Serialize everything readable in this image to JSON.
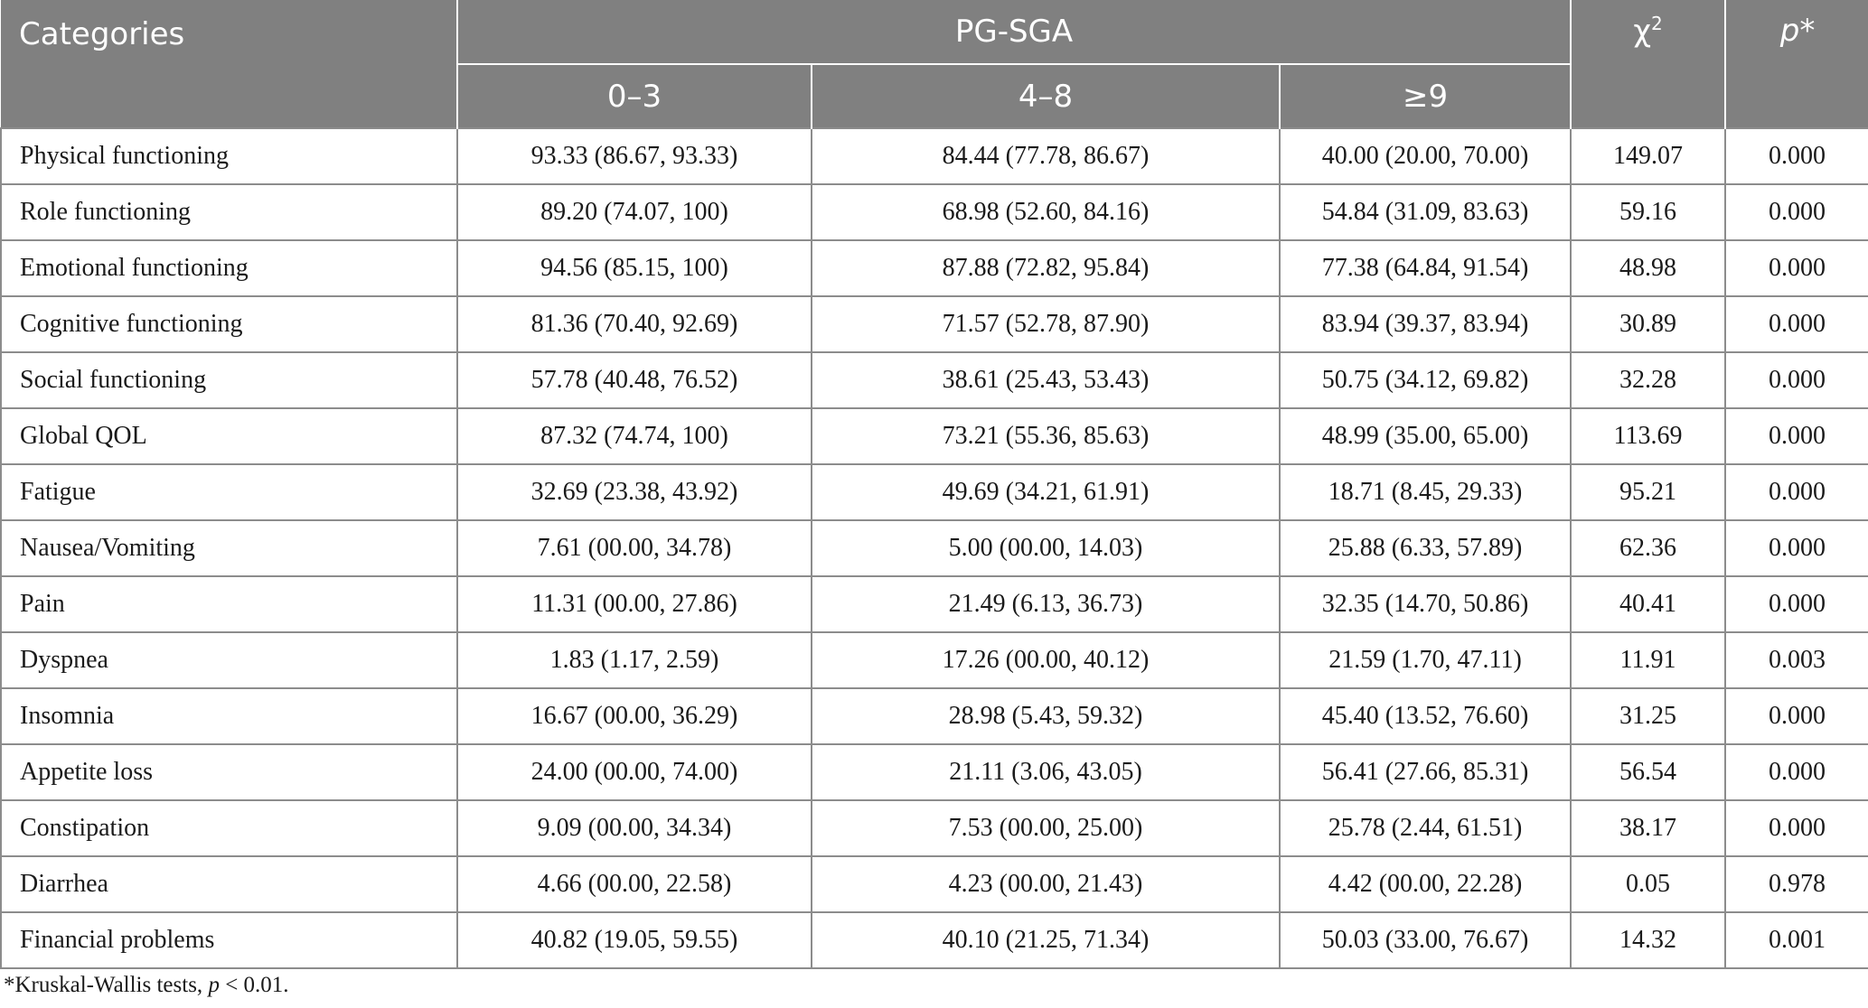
{
  "header": {
    "categories": "Categories",
    "group": "PG-SGA",
    "chi": "χ",
    "chi_sup": "2",
    "p": "p",
    "p_star": "*",
    "sub": [
      "0–3",
      "4–8",
      "≥9"
    ]
  },
  "rows": [
    {
      "cat": "Physical functioning",
      "a": "93.33 (86.67, 93.33)",
      "b": "84.44 (77.78, 86.67)",
      "c": "40.00 (20.00, 70.00)",
      "chi": "149.07",
      "p": "0.000"
    },
    {
      "cat": "Role functioning",
      "a": "89.20 (74.07, 100)",
      "b": "68.98 (52.60, 84.16)",
      "c": "54.84 (31.09, 83.63)",
      "chi": "59.16",
      "p": "0.000"
    },
    {
      "cat": "Emotional functioning",
      "a": "94.56 (85.15, 100)",
      "b": "87.88 (72.82, 95.84)",
      "c": "77.38 (64.84, 91.54)",
      "chi": "48.98",
      "p": "0.000"
    },
    {
      "cat": "Cognitive functioning",
      "a": "81.36 (70.40, 92.69)",
      "b": "71.57 (52.78, 87.90)",
      "c": "83.94 (39.37, 83.94)",
      "chi": "30.89",
      "p": "0.000"
    },
    {
      "cat": "Social functioning",
      "a": "57.78 (40.48, 76.52)",
      "b": "38.61 (25.43, 53.43)",
      "c": "50.75 (34.12, 69.82)",
      "chi": "32.28",
      "p": "0.000"
    },
    {
      "cat": "Global QOL",
      "a": "87.32 (74.74, 100)",
      "b": "73.21 (55.36, 85.63)",
      "c": "48.99 (35.00, 65.00)",
      "chi": "113.69",
      "p": "0.000"
    },
    {
      "cat": "Fatigue",
      "a": "32.69 (23.38, 43.92)",
      "b": "49.69 (34.21, 61.91)",
      "c": "18.71 (8.45, 29.33)",
      "chi": "95.21",
      "p": "0.000"
    },
    {
      "cat": "Nausea/Vomiting",
      "a": "7.61 (00.00, 34.78)",
      "b": "5.00 (00.00, 14.03)",
      "c": "25.88 (6.33, 57.89)",
      "chi": "62.36",
      "p": "0.000"
    },
    {
      "cat": "Pain",
      "a": "11.31 (00.00, 27.86)",
      "b": "21.49 (6.13, 36.73)",
      "c": "32.35 (14.70, 50.86)",
      "chi": "40.41",
      "p": "0.000"
    },
    {
      "cat": "Dyspnea",
      "a": "1.83 (1.17, 2.59)",
      "b": "17.26 (00.00, 40.12)",
      "c": "21.59 (1.70, 47.11)",
      "chi": "11.91",
      "p": "0.003"
    },
    {
      "cat": "Insomnia",
      "a": "16.67 (00.00, 36.29)",
      "b": "28.98 (5.43, 59.32)",
      "c": "45.40 (13.52, 76.60)",
      "chi": "31.25",
      "p": "0.000"
    },
    {
      "cat": "Appetite loss",
      "a": "24.00 (00.00, 74.00)",
      "b": "21.11 (3.06, 43.05)",
      "c": "56.41 (27.66, 85.31)",
      "chi": "56.54",
      "p": "0.000"
    },
    {
      "cat": "Constipation",
      "a": "9.09 (00.00, 34.34)",
      "b": "7.53 (00.00, 25.00)",
      "c": "25.78 (2.44, 61.51)",
      "chi": "38.17",
      "p": "0.000"
    },
    {
      "cat": "Diarrhea",
      "a": "4.66 (00.00, 22.58)",
      "b": "4.23 (00.00, 21.43)",
      "c": "4.42 (00.00, 22.28)",
      "chi": "0.05",
      "p": "0.978"
    },
    {
      "cat": "Financial problems",
      "a": "40.82 (19.05, 59.55)",
      "b": "40.10 (21.25, 71.34)",
      "c": "50.03 (33.00, 76.67)",
      "chi": "14.32",
      "p": "0.001"
    }
  ],
  "footnote": {
    "pre": "*Kruskal-Wallis tests, ",
    "p": "p",
    "post": " < 0.01."
  }
}
